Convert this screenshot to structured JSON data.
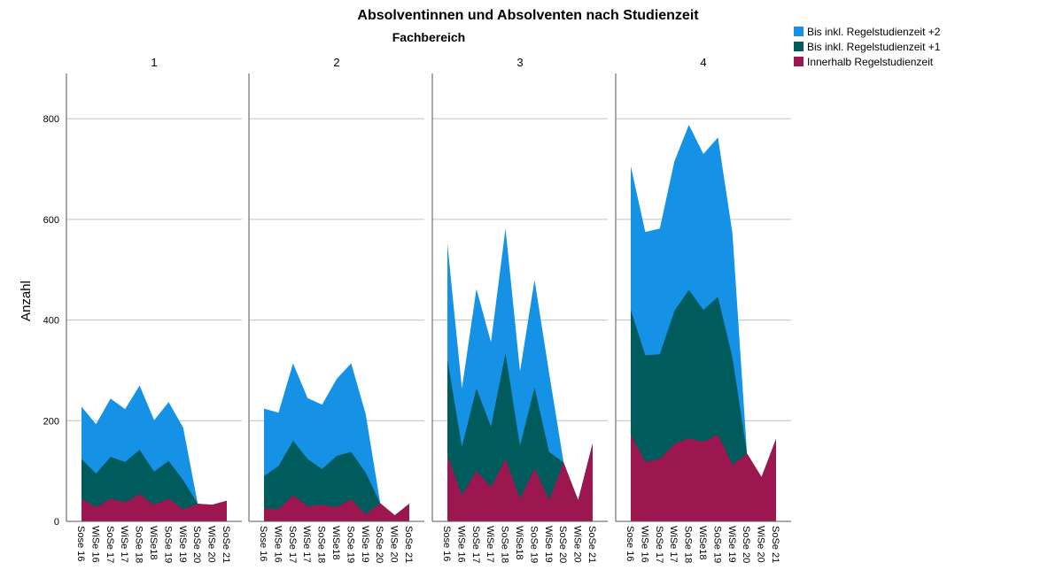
{
  "chart_data": {
    "type": "area",
    "stacked": true,
    "faceted": true,
    "title": "Absolventinnen und Absolventen nach Studienzeit",
    "facet_title": "Fachbereich",
    "ylabel": "Anzahl",
    "xlabel": "",
    "ylim": [
      0,
      890
    ],
    "yticks": [
      0,
      200,
      400,
      600,
      800
    ],
    "grid": true,
    "legend_position": "top-right",
    "categories": [
      "Sose 16",
      "WiSe 16",
      "SoSe 17",
      "WiSe 17",
      "SoSe 18",
      "WiSe18",
      "SoSe 19",
      "WiSe 19",
      "SoSe 20",
      "WiSe 20",
      "SoSe 21"
    ],
    "series": [
      {
        "name": "Bis inkl. Regelstudienzeit +2",
        "color": "#1592e6"
      },
      {
        "name": "Bis inkl. Regelstudienzeit +1",
        "color": "#005c5c"
      },
      {
        "name": "Innerhalb Regelstudienzeit",
        "color": "#9c1750"
      }
    ],
    "legend_order": [
      "Bis inkl. Regelstudienzeit +2",
      "Bis inkl. Regelstudienzeit +1",
      "Innerhalb Regelstudienzeit"
    ],
    "panels": [
      {
        "label": "1",
        "totals": {
          "Innerhalb Regelstudienzeit": [
            45,
            28,
            45,
            38,
            54,
            33,
            45,
            24,
            35,
            33,
            41
          ],
          "Bis inkl. Regelstudienzeit +1": [
            124,
            95,
            128,
            118,
            142,
            99,
            120,
            82,
            35,
            33,
            41
          ],
          "Bis inkl. Regelstudienzeit +2": [
            228,
            193,
            244,
            223,
            270,
            201,
            237,
            186,
            35,
            33,
            41
          ]
        }
      },
      {
        "label": "2",
        "totals": {
          "Innerhalb Regelstudienzeit": [
            25,
            24,
            52,
            30,
            33,
            28,
            44,
            14,
            36,
            12,
            35
          ],
          "Bis inkl. Regelstudienzeit +1": [
            90,
            110,
            160,
            124,
            104,
            130,
            138,
            97,
            36,
            12,
            35
          ],
          "Bis inkl. Regelstudienzeit +2": [
            224,
            216,
            314,
            245,
            232,
            283,
            314,
            213,
            36,
            12,
            35
          ]
        }
      },
      {
        "label": "3",
        "totals": {
          "Innerhalb Regelstudienzeit": [
            130,
            52,
            100,
            68,
            124,
            45,
            105,
            43,
            117,
            42,
            155
          ],
          "Bis inkl. Regelstudienzeit +1": [
            322,
            148,
            264,
            188,
            334,
            150,
            266,
            138,
            117,
            42,
            155
          ],
          "Bis inkl. Regelstudienzeit +2": [
            552,
            264,
            462,
            356,
            582,
            298,
            480,
            295,
            117,
            42,
            155
          ]
        }
      },
      {
        "label": "4",
        "totals": {
          "Innerhalb Regelstudienzeit": [
            172,
            118,
            124,
            154,
            165,
            158,
            172,
            112,
            135,
            88,
            164
          ],
          "Bis inkl. Regelstudienzeit +1": [
            420,
            330,
            332,
            418,
            460,
            420,
            446,
            325,
            135,
            88,
            164
          ],
          "Bis inkl. Regelstudienzeit +2": [
            706,
            575,
            582,
            715,
            788,
            730,
            763,
            572,
            135,
            88,
            164
          ]
        }
      }
    ]
  }
}
